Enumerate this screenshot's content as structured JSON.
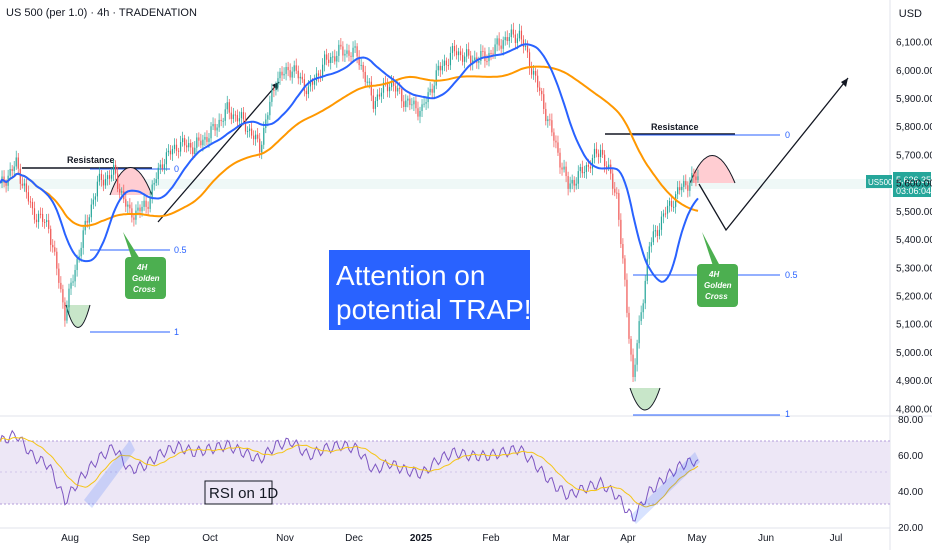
{
  "header": {
    "title": "US 500 (per 1.0) · 4h · TRADENATION",
    "currency": "USD"
  },
  "price_tag": {
    "symbol": "US500",
    "price": "5,626.35",
    "countdown": "03:06:04"
  },
  "annotations": {
    "resistance_left": "Resistance",
    "resistance_right": "Resistance",
    "fib_left": [
      "0",
      "0.5",
      "1"
    ],
    "fib_right": [
      "0",
      "0.5",
      "1"
    ],
    "golden_cross_left": [
      "4H",
      "Golden",
      "Cross"
    ],
    "golden_cross_right": [
      "4H",
      "Golden",
      "Cross"
    ],
    "callout_line1": "Attention on",
    "callout_line2": "potential TRAP!",
    "rsi_label": "RSI on 1D"
  },
  "colors": {
    "candle_up": "#26a69a",
    "candle_down": "#ef5350",
    "ma_fast": "#2962ff",
    "ma_slow": "#ff9800",
    "callout_bg": "#2962ff",
    "golden_cross_bg": "#4caf50",
    "fib_line": "#2962ff",
    "rsi_line": "#7e57c2",
    "rsi_band": "#ede7f6",
    "tag_bg": "#26a69a"
  },
  "chart_data": [
    {
      "type": "line",
      "ylim": [
        4780,
        6180
      ],
      "y_ticks": [
        "6,100.00",
        "6,000.00",
        "5,900.00",
        "5,800.00",
        "5,700.00",
        "5,600.00",
        "5,500.00",
        "5,400.00",
        "5,300.00",
        "5,200.00",
        "5,100.00",
        "5,000.00",
        "4,900.00",
        "4,800.00"
      ],
      "x_ticks": [
        "Aug",
        "Sep",
        "Oct",
        "Nov",
        "Dec",
        "2025",
        "Feb",
        "Mar",
        "Apr",
        "May",
        "Jun",
        "Jul"
      ],
      "x": [
        "2024-07-10",
        "2024-07-17",
        "2024-07-24",
        "2024-07-31",
        "2024-08-05",
        "2024-08-12",
        "2024-08-19",
        "2024-08-26",
        "2024-09-03",
        "2024-09-09",
        "2024-09-16",
        "2024-09-23",
        "2024-09-30",
        "2024-10-07",
        "2024-10-14",
        "2024-10-21",
        "2024-10-28",
        "2024-11-04",
        "2024-11-11",
        "2024-11-18",
        "2024-11-25",
        "2024-12-02",
        "2024-12-09",
        "2024-12-16",
        "2024-12-23",
        "2024-12-30",
        "2025-01-06",
        "2025-01-13",
        "2025-01-20",
        "2025-01-27",
        "2025-02-03",
        "2025-02-10",
        "2025-02-18",
        "2025-02-24",
        "2025-03-03",
        "2025-03-10",
        "2025-03-17",
        "2025-03-24",
        "2025-03-31",
        "2025-04-07",
        "2025-04-14",
        "2025-04-21",
        "2025-04-28",
        "2025-05-02"
      ],
      "series": [
        {
          "name": "US500",
          "values": [
            5590,
            5670,
            5500,
            5450,
            5140,
            5390,
            5600,
            5640,
            5490,
            5520,
            5680,
            5740,
            5730,
            5780,
            5860,
            5820,
            5730,
            5970,
            6010,
            5930,
            6030,
            6070,
            6060,
            5890,
            5960,
            5890,
            5860,
            6000,
            6070,
            6040,
            6050,
            6110,
            6130,
            5970,
            5780,
            5590,
            5650,
            5720,
            5560,
            4910,
            5380,
            5500,
            5590,
            5626
          ]
        }
      ]
    },
    {
      "type": "line",
      "ylim": [
        20,
        80
      ],
      "y_ticks": [
        "80.00",
        "60.00",
        "40.00",
        "20.00"
      ],
      "series": [
        {
          "name": "RSI",
          "values": [
            68,
            72,
            60,
            55,
            35,
            48,
            58,
            65,
            52,
            55,
            62,
            65,
            62,
            64,
            66,
            62,
            58,
            66,
            68,
            60,
            64,
            66,
            64,
            52,
            56,
            52,
            50,
            58,
            62,
            60,
            60,
            62,
            64,
            55,
            45,
            38,
            42,
            45,
            38,
            25,
            40,
            48,
            55,
            58
          ]
        }
      ]
    }
  ]
}
